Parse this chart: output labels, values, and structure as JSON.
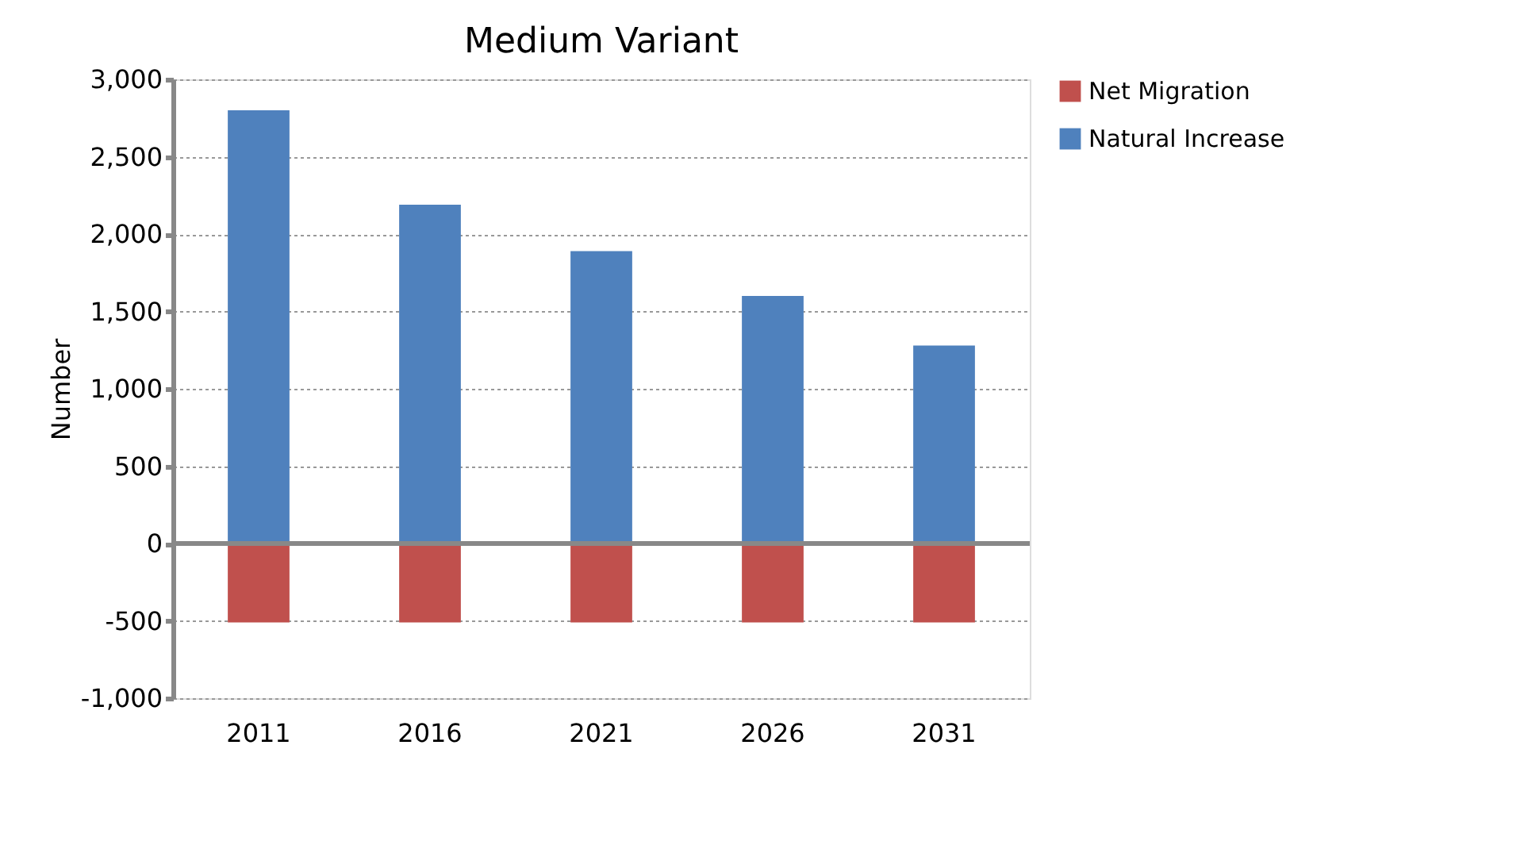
{
  "chart_data": {
    "type": "bar",
    "title": "Medium Variant",
    "ylabel": "Number",
    "categories": [
      "2011",
      "2016",
      "2021",
      "2026",
      "2031"
    ],
    "stacked": true,
    "series": [
      {
        "name": "Net Migration",
        "color": "#c0504d",
        "values": [
          -510,
          -510,
          -510,
          -510,
          -510
        ]
      },
      {
        "name": "Natural Increase",
        "color": "#4f81bd",
        "values": [
          2800,
          2190,
          1890,
          1600,
          1280
        ]
      }
    ],
    "ylim": [
      -1000,
      3000
    ],
    "yticks": [
      {
        "value": -1000,
        "label": "-1,000"
      },
      {
        "value": -500,
        "label": "-500"
      },
      0,
      500,
      {
        "value": 1000,
        "label": "1,000"
      },
      {
        "value": 1500,
        "label": "1,500"
      },
      {
        "value": 2000,
        "label": "2,000"
      },
      {
        "value": 2500,
        "label": "2,500"
      },
      {
        "value": 3000,
        "label": "3,000"
      }
    ],
    "grid": "y",
    "legend": "right"
  }
}
